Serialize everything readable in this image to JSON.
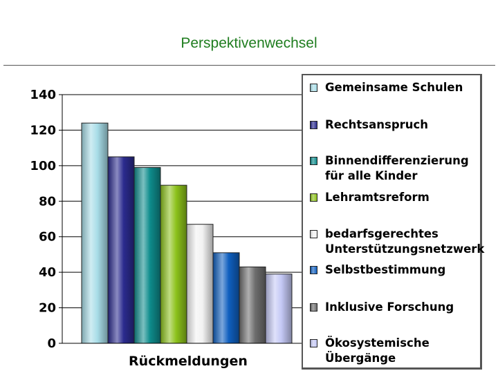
{
  "slide": {
    "title": "Perspektivenwechsel"
  },
  "chart_data": {
    "type": "bar",
    "xlabel": "Rückmeldungen",
    "ylabel": "",
    "ylim": [
      0,
      140
    ],
    "yticks": [
      0,
      20,
      40,
      60,
      80,
      100,
      120,
      140
    ],
    "grid": true,
    "legend_position": "right",
    "categories": [
      "Rückmeldungen"
    ],
    "series": [
      {
        "name": "Gemeinsame Schulen",
        "values": [
          124
        ],
        "color": "#a8dde8"
      },
      {
        "name": "Rechtsanspruch",
        "values": [
          105
        ],
        "color": "#2b2b8e"
      },
      {
        "name": "Binnendifferenzierung für alle Kinder",
        "values": [
          99
        ],
        "color": "#0e8c8c"
      },
      {
        "name": "Lehramtsreform",
        "values": [
          89
        ],
        "color": "#8cc21a"
      },
      {
        "name": "bedarfsgerechtes Unterstützungsnetzwerk",
        "values": [
          67
        ],
        "color": "#f2f2f2"
      },
      {
        "name": "Selbstbestimmung",
        "values": [
          51
        ],
        "color": "#0f5fbf"
      },
      {
        "name": "Inklusive Forschung",
        "values": [
          43
        ],
        "color": "#6e6e6e"
      },
      {
        "name": "Ökosystemische Übergänge",
        "values": [
          39
        ],
        "color": "#c4c8f5"
      }
    ]
  }
}
